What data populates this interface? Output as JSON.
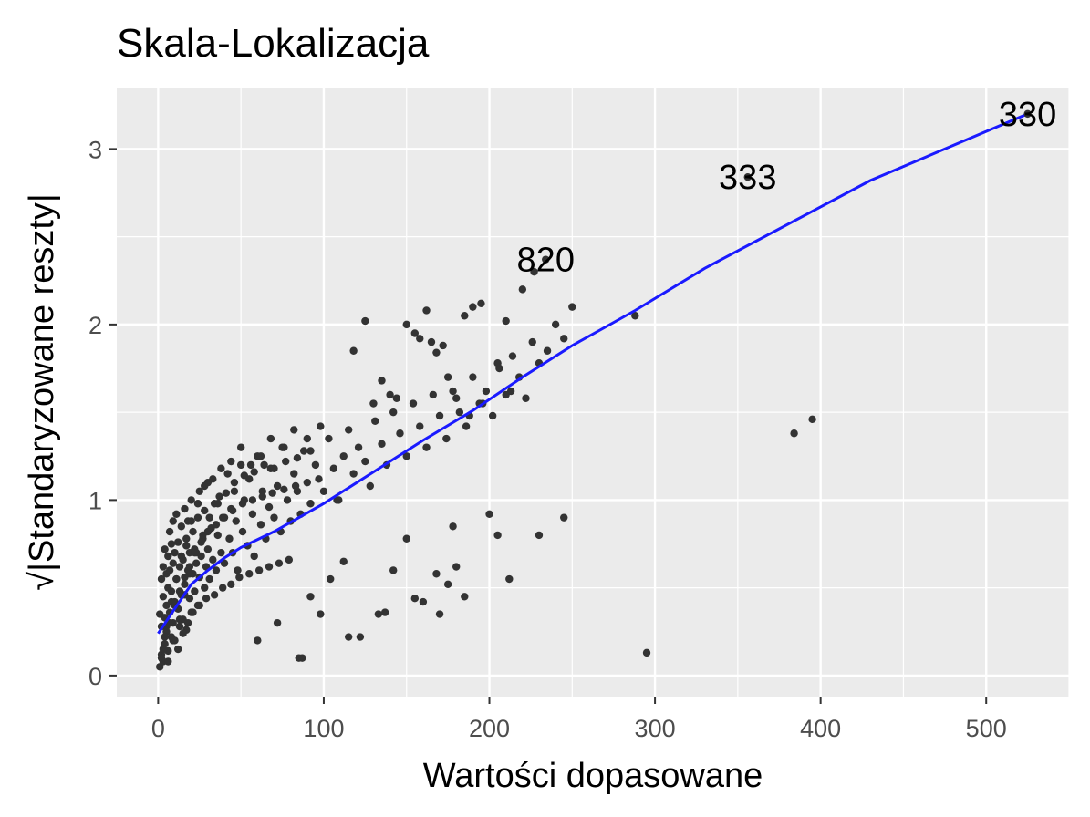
{
  "chart_data": {
    "type": "scatter",
    "title": "Skala-Lokalizacja",
    "xlabel": "Wartości dopasowane",
    "ylabel": "√|Standaryzowane reszty|",
    "xlim": [
      -25,
      550
    ],
    "ylim": [
      -0.12,
      3.35
    ],
    "x_ticks": [
      0,
      100,
      200,
      300,
      400,
      500
    ],
    "y_ticks": [
      0,
      1,
      2,
      3
    ],
    "x_tick_labels": [
      "0",
      "100",
      "200",
      "300",
      "400",
      "500"
    ],
    "y_tick_labels": [
      "0",
      "1",
      "2",
      "3"
    ],
    "grid": true,
    "colors": {
      "panel": "#ebebeb",
      "grid": "#ffffff",
      "points": "#333333",
      "smooth": "#1a1aff"
    },
    "labeled_points": [
      {
        "label": "820",
        "x": 234,
        "y": 2.37
      },
      {
        "label": "333",
        "x": 356,
        "y": 2.84
      },
      {
        "label": "330",
        "x": 525,
        "y": 3.2
      }
    ],
    "smooth_line": {
      "x": [
        0,
        10,
        20,
        30,
        40,
        50,
        70,
        100,
        130,
        160,
        190,
        220,
        250,
        288,
        330,
        380,
        430,
        480,
        525
      ],
      "y": [
        0.24,
        0.38,
        0.52,
        0.6,
        0.67,
        0.73,
        0.82,
        0.98,
        1.16,
        1.34,
        1.51,
        1.7,
        1.88,
        2.08,
        2.32,
        2.57,
        2.82,
        3.02,
        3.2
      ]
    },
    "points": {
      "x": [
        1,
        1,
        2,
        2,
        2,
        3,
        3,
        3,
        4,
        4,
        4,
        5,
        5,
        5,
        6,
        6,
        6,
        7,
        7,
        7,
        8,
        8,
        8,
        9,
        9,
        9,
        10,
        10,
        10,
        11,
        11,
        12,
        12,
        13,
        13,
        14,
        14,
        15,
        15,
        16,
        16,
        17,
        17,
        18,
        18,
        19,
        19,
        20,
        20,
        21,
        21,
        22,
        22,
        23,
        24,
        24,
        25,
        25,
        26,
        27,
        28,
        28,
        29,
        30,
        30,
        31,
        32,
        33,
        34,
        35,
        36,
        37,
        38,
        39,
        40,
        42,
        43,
        44,
        45,
        46,
        47,
        48,
        50,
        51,
        52,
        54,
        55,
        57,
        58,
        60,
        62,
        63,
        65,
        67,
        68,
        70,
        72,
        74,
        76,
        78,
        80,
        82,
        84,
        86,
        88,
        90,
        92,
        95,
        97,
        100,
        103,
        106,
        109,
        112,
        115,
        118,
        121,
        125,
        128,
        131,
        135,
        138,
        142,
        146,
        150,
        154,
        158,
        162,
        166,
        170,
        174,
        178,
        182,
        186,
        190,
        194,
        198,
        202,
        206,
        210,
        214,
        218,
        222,
        226,
        230,
        235,
        240,
        245,
        250,
        3,
        5,
        8,
        11,
        14,
        17,
        20,
        24,
        28,
        33,
        38,
        44,
        50,
        56,
        62,
        68,
        75,
        82,
        90,
        98,
        6,
        9,
        13,
        16,
        19,
        23,
        27,
        31,
        36,
        41,
        46,
        52,
        58,
        64,
        70,
        77,
        84,
        92,
        2,
        4,
        7,
        10,
        13,
        16,
        19,
        22,
        26,
        30,
        35,
        40,
        45,
        51,
        57,
        63,
        69,
        76,
        83,
        12,
        15,
        18,
        21,
        25,
        29,
        34,
        39,
        44,
        49,
        55,
        61,
        67,
        73,
        79,
        125,
        130,
        150,
        158,
        165,
        172,
        185,
        190,
        195,
        205,
        210,
        220,
        213,
        227,
        108,
        118,
        135,
        140,
        144,
        155,
        162,
        168,
        175,
        180,
        188,
        196,
        60,
        72,
        85,
        92,
        98,
        104,
        112,
        122,
        133,
        142,
        150,
        160,
        170,
        175,
        180,
        185,
        200,
        205,
        212,
        230,
        245,
        87,
        115,
        137,
        155,
        168,
        178,
        288,
        384,
        395,
        295
      ],
      "y": [
        0.05,
        0.35,
        0.12,
        0.55,
        0.28,
        0.45,
        0.08,
        0.62,
        0.33,
        0.18,
        0.72,
        0.4,
        0.58,
        0.25,
        0.68,
        0.14,
        0.5,
        0.82,
        0.36,
        0.6,
        0.22,
        0.75,
        0.48,
        0.3,
        0.64,
        0.88,
        0.42,
        0.7,
        0.2,
        0.55,
        0.92,
        0.38,
        0.76,
        0.28,
        0.62,
        0.85,
        0.46,
        0.66,
        0.32,
        0.95,
        0.52,
        0.74,
        0.26,
        0.6,
        0.88,
        0.44,
        0.7,
        1.0,
        0.36,
        0.58,
        0.82,
        0.48,
        0.72,
        0.64,
        0.9,
        0.4,
        0.56,
        1.05,
        0.68,
        0.78,
        0.5,
        0.94,
        0.62,
        0.72,
        1.1,
        0.55,
        0.84,
        0.66,
        0.98,
        0.6,
        0.8,
        1.02,
        0.7,
        0.9,
        0.64,
        1.15,
        0.78,
        0.95,
        0.7,
        1.05,
        0.88,
        0.6,
        1.2,
        0.82,
        1.0,
        0.74,
        1.12,
        0.92,
        0.68,
        1.25,
        0.86,
        1.05,
        0.78,
        0.96,
        1.18,
        0.9,
        1.08,
        0.82,
        1.3,
        1.0,
        0.88,
        1.15,
        1.05,
        0.92,
        1.28,
        1.1,
        0.98,
        1.2,
        1.12,
        1.05,
        1.35,
        1.18,
        1.0,
        1.25,
        1.4,
        1.15,
        1.3,
        1.22,
        1.08,
        1.45,
        1.32,
        1.2,
        1.5,
        1.38,
        1.25,
        1.55,
        1.42,
        1.3,
        1.6,
        1.48,
        1.35,
        1.62,
        1.5,
        1.42,
        1.7,
        1.55,
        1.62,
        1.48,
        1.75,
        1.6,
        1.82,
        1.7,
        1.58,
        1.9,
        1.78,
        1.85,
        2.0,
        1.92,
        2.1,
        0.15,
        0.28,
        0.42,
        0.55,
        0.68,
        0.78,
        0.88,
        0.98,
        1.08,
        1.12,
        1.18,
        1.22,
        1.3,
        1.2,
        1.25,
        1.35,
        1.3,
        1.4,
        1.35,
        1.42,
        0.08,
        0.2,
        0.32,
        0.46,
        0.58,
        0.7,
        0.8,
        0.9,
        0.98,
        1.04,
        1.1,
        1.14,
        1.16,
        1.2,
        1.18,
        1.22,
        1.24,
        1.28,
        0.1,
        0.22,
        0.3,
        0.4,
        0.48,
        0.56,
        0.62,
        0.7,
        0.76,
        0.82,
        0.86,
        0.9,
        0.94,
        0.98,
        1.0,
        1.02,
        1.04,
        1.06,
        1.08,
        0.15,
        0.24,
        0.3,
        0.36,
        0.4,
        0.44,
        0.46,
        0.5,
        0.52,
        0.56,
        0.58,
        0.6,
        0.62,
        0.64,
        0.66,
        2.02,
        1.55,
        2.0,
        1.92,
        1.9,
        1.88,
        2.05,
        2.1,
        2.12,
        1.78,
        2.02,
        2.2,
        1.62,
        2.3,
        1.0,
        1.85,
        1.68,
        1.6,
        1.58,
        1.95,
        2.08,
        1.84,
        1.7,
        1.58,
        1.48,
        1.55,
        0.2,
        0.3,
        0.1,
        0.45,
        0.35,
        0.55,
        0.65,
        0.22,
        0.35,
        0.6,
        0.78,
        0.42,
        0.35,
        0.52,
        0.62,
        0.45,
        0.92,
        0.8,
        0.55,
        0.8,
        0.9,
        0.1,
        0.22,
        0.36,
        0.44,
        0.58,
        0.85,
        2.05,
        1.38,
        1.46,
        0.13
      ]
    }
  }
}
